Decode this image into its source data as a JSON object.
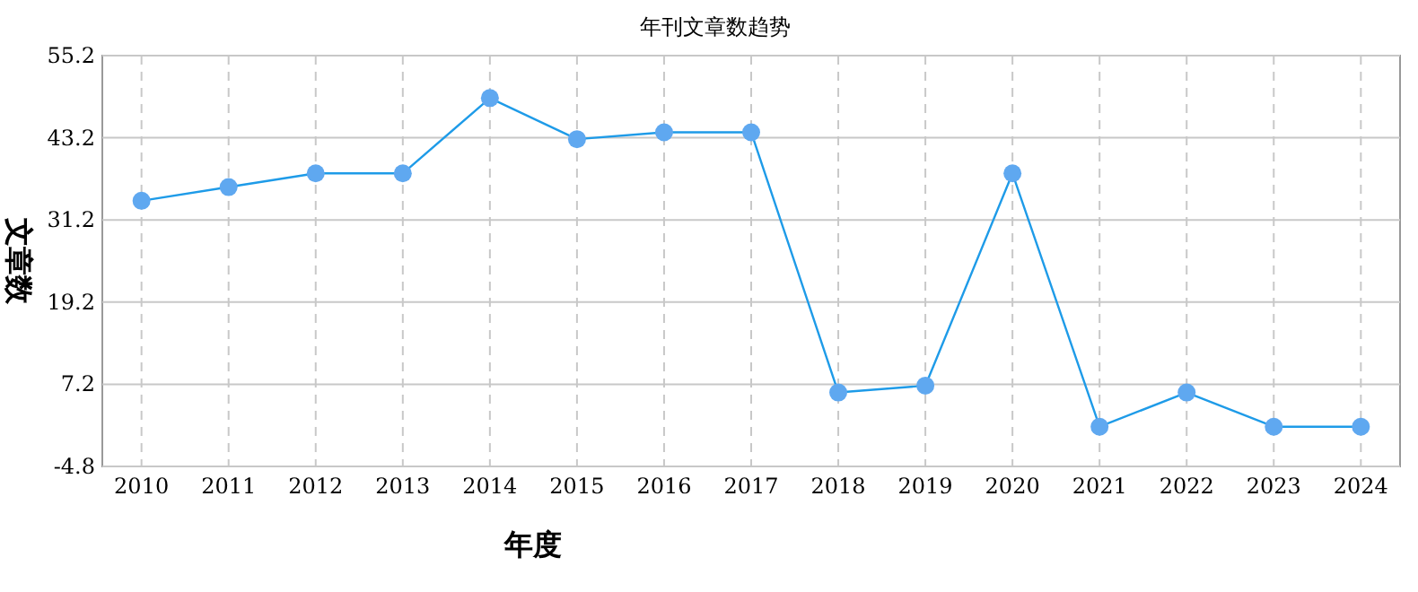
{
  "chart_data": {
    "type": "line",
    "title": "年刊文章数趋势",
    "xlabel": "年度",
    "ylabel": "文章数",
    "categories": [
      "2010",
      "2011",
      "2012",
      "2013",
      "2014",
      "2015",
      "2016",
      "2017",
      "2018",
      "2019",
      "2020",
      "2021",
      "2022",
      "2023",
      "2024"
    ],
    "series": [
      {
        "color": "#1e9be8",
        "values": [
          34,
          36,
          38,
          38,
          49,
          43,
          44,
          44,
          6,
          7,
          38,
          1,
          6,
          1,
          1
        ]
      }
    ],
    "ylim": [
      -4.8,
      55.2
    ],
    "yticks": [
      -4.8,
      7.2,
      19.2,
      31.2,
      43.2,
      55.2
    ],
    "grid": true,
    "marker": "circle",
    "line_style": "solid"
  }
}
